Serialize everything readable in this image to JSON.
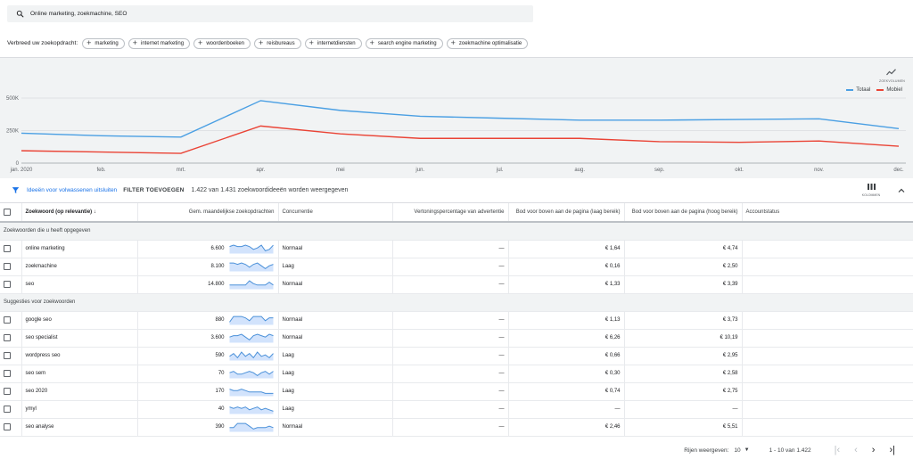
{
  "search": {
    "query": "Online marketing, zoekmachine, SEO"
  },
  "broaden": {
    "label": "Verbreed uw zoekopdracht:",
    "chips": [
      "marketing",
      "internet marketing",
      "woordenboeken",
      "reisbureaus",
      "internetdiensten",
      "search engine marketing",
      "zoekmachine optimalisatie"
    ]
  },
  "trend_label": "ZOEKVOLUMEN",
  "chart_data": {
    "type": "line",
    "categories": [
      "jan. 2020",
      "feb.",
      "mrt.",
      "apr.",
      "mei",
      "jun.",
      "jul.",
      "aug.",
      "sep.",
      "okt.",
      "nov.",
      "dec."
    ],
    "series": [
      {
        "name": "Totaal",
        "color": "#4a9fe3",
        "values": [
          230000,
          210000,
          200000,
          480000,
          405000,
          360000,
          345000,
          330000,
          330000,
          335000,
          340000,
          265000
        ]
      },
      {
        "name": "Mobiel",
        "color": "#ea4335",
        "values": [
          95000,
          85000,
          75000,
          285000,
          225000,
          190000,
          190000,
          190000,
          165000,
          160000,
          170000,
          130000
        ]
      }
    ],
    "y_ticks": [
      "0",
      "250K",
      "500K"
    ],
    "ylim": [
      0,
      500000
    ],
    "legend": "top-right",
    "grid": true
  },
  "filter": {
    "exclude_label": "Ideeën voor volwassenen uitsluiten",
    "add_label": "FILTER TOEVOEGEN",
    "count_text": "1.422 van 1.431 zoekwoordideeën worden weergegeven",
    "columns_label": "KOLOMMEN"
  },
  "columns": {
    "keyword": "Zoekwoord (op relevantie)",
    "searches": "Gem. maandelijkse zoekopdrachten",
    "competition": "Concurrentie",
    "impression_share": "Vertoningspercentage van advertentie",
    "bid_low": "Bod voor boven aan de pagina (laag bereik)",
    "bid_high": "Bod voor boven aan de pagina (hoog bereik)",
    "status": "Accountstatus"
  },
  "groups": [
    {
      "title": "Zoekwoorden die u heeft opgegeven",
      "rows": [
        {
          "keyword": "online marketing",
          "searches": "6.600",
          "competition": "Normaal",
          "share": "—",
          "low": "€ 1,64",
          "high": "€ 4,74",
          "trend": [
            5,
            6,
            5,
            5,
            6,
            5,
            3,
            4,
            6,
            2,
            3,
            6
          ]
        },
        {
          "keyword": "zoekmachine",
          "searches": "8.100",
          "competition": "Laag",
          "share": "—",
          "low": "€ 0,16",
          "high": "€ 2,50",
          "trend": [
            6,
            6,
            5,
            6,
            5,
            3,
            5,
            6,
            4,
            2,
            4,
            5
          ]
        },
        {
          "keyword": "seo",
          "searches": "14.800",
          "competition": "Normaal",
          "share": "—",
          "low": "€ 1,33",
          "high": "€ 3,39",
          "trend": [
            3,
            3,
            3,
            3,
            3,
            6,
            4,
            3,
            3,
            3,
            5,
            3
          ]
        }
      ]
    },
    {
      "title": "Suggesties voor zoekwoorden",
      "rows": [
        {
          "keyword": "google seo",
          "searches": "880",
          "competition": "Normaal",
          "share": "—",
          "low": "€ 1,13",
          "high": "€ 3,73",
          "trend": [
            2,
            6,
            6,
            6,
            5,
            3,
            6,
            6,
            6,
            3,
            5,
            5
          ]
        },
        {
          "keyword": "seo specialist",
          "searches": "3.600",
          "competition": "Normaal",
          "share": "—",
          "low": "€ 6,26",
          "high": "€ 10,19",
          "trend": [
            4,
            5,
            5,
            6,
            4,
            2,
            5,
            6,
            5,
            4,
            6,
            5
          ]
        },
        {
          "keyword": "wordpress seo",
          "searches": "590",
          "competition": "Laag",
          "share": "—",
          "low": "€ 0,66",
          "high": "€ 2,95",
          "trend": [
            3,
            5,
            2,
            6,
            3,
            5,
            2,
            6,
            3,
            4,
            2,
            5
          ]
        },
        {
          "keyword": "seo sem",
          "searches": "70",
          "competition": "Laag",
          "share": "—",
          "low": "€ 0,30",
          "high": "€ 2,58",
          "trend": [
            4,
            5,
            3,
            3,
            4,
            5,
            4,
            2,
            4,
            5,
            3,
            5
          ]
        },
        {
          "keyword": "seo 2020",
          "searches": "170",
          "competition": "Laag",
          "share": "—",
          "low": "€ 0,74",
          "high": "€ 2,75",
          "trend": [
            5,
            4,
            4,
            5,
            4,
            3,
            3,
            3,
            3,
            2,
            2,
            2
          ]
        },
        {
          "keyword": "ymyl",
          "searches": "40",
          "competition": "Laag",
          "share": "—",
          "low": "—",
          "high": "—",
          "trend": [
            5,
            4,
            5,
            4,
            5,
            3,
            4,
            5,
            3,
            4,
            3,
            2
          ]
        },
        {
          "keyword": "seo analyse",
          "searches": "390",
          "competition": "Normaal",
          "share": "—",
          "low": "€ 2,46",
          "high": "€ 5,51",
          "trend": [
            3,
            3,
            6,
            6,
            6,
            4,
            2,
            3,
            3,
            3,
            4,
            3
          ]
        }
      ]
    }
  ],
  "pager": {
    "rows_label": "Rijen weergeven:",
    "rows_value": "10",
    "range": "1 - 10 van 1.422"
  },
  "colors": {
    "accent": "#1a73e8",
    "sparkline": "#4a90d9"
  }
}
